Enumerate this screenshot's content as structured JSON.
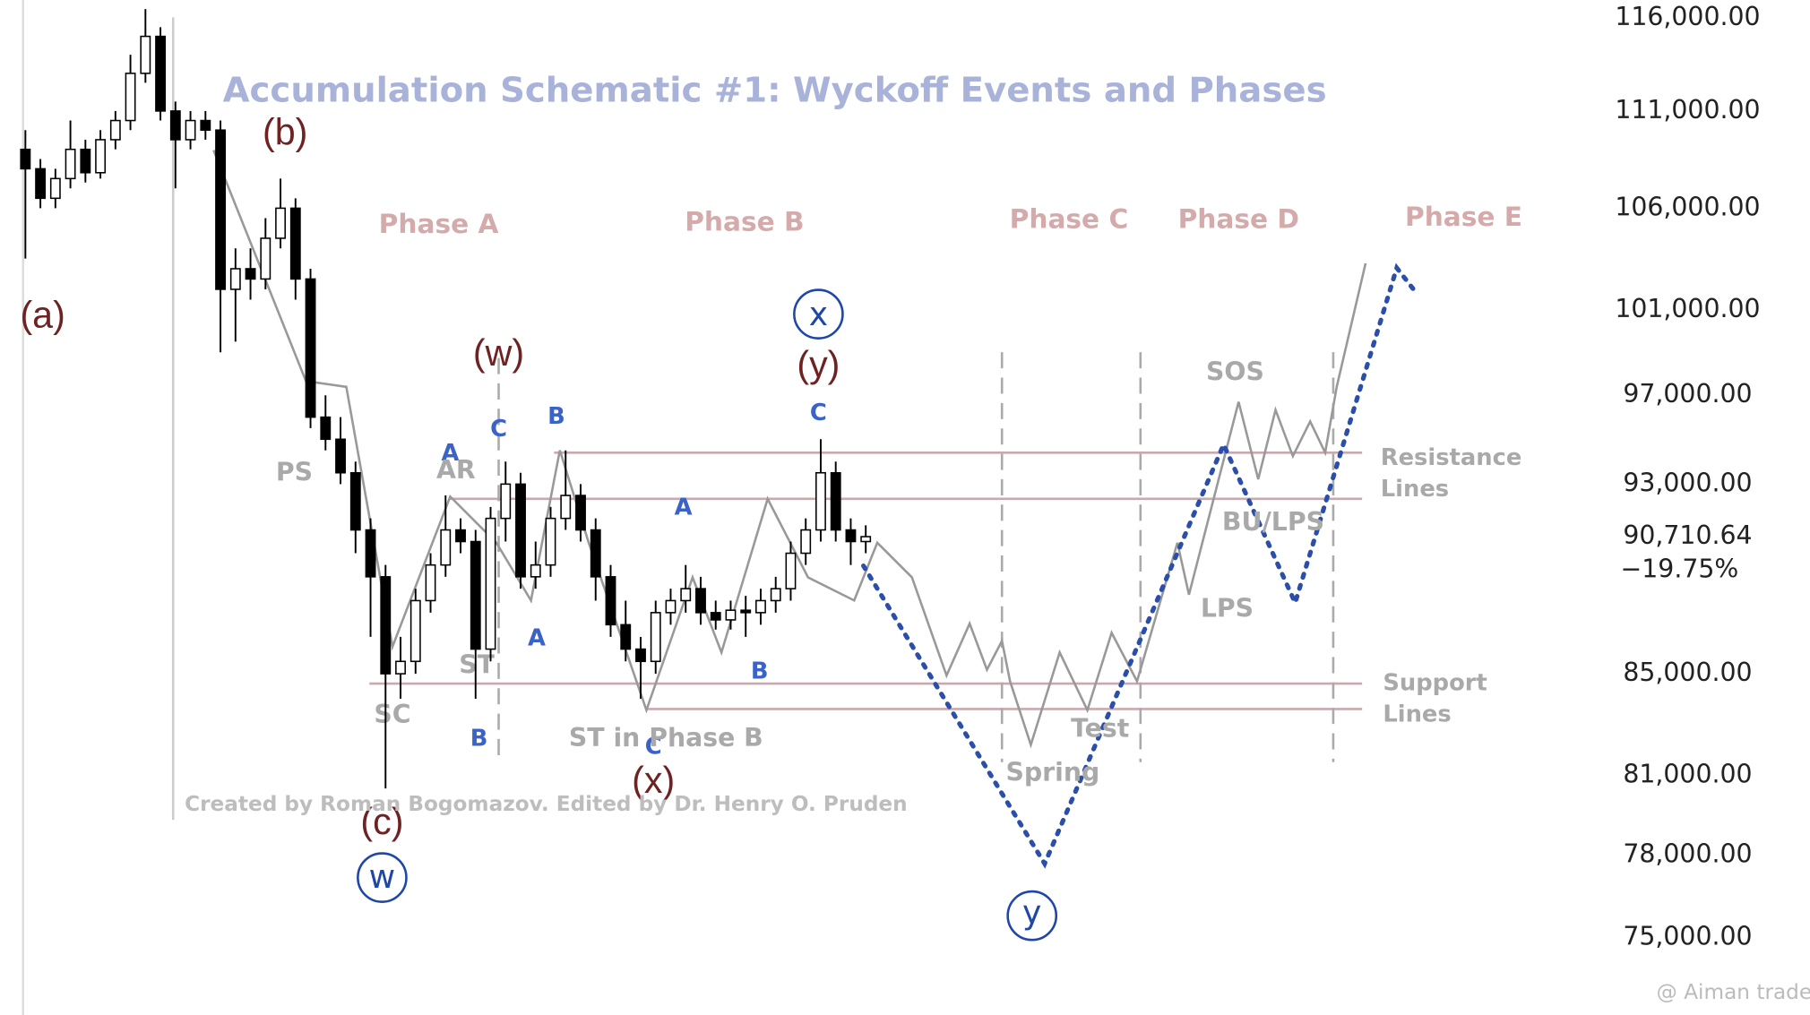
{
  "chart_data": {
    "type": "candlestick",
    "log_scale": true,
    "up_color": "#ffffff",
    "down_color": "#000000",
    "ylim": [
      72300,
      117000
    ],
    "yticks": [
      {
        "value": 116000,
        "label": "116,000.00"
      },
      {
        "value": 111000,
        "label": "111,000.00"
      },
      {
        "value": 106000,
        "label": "106,000.00"
      },
      {
        "value": 101000,
        "label": "101,000.00"
      },
      {
        "value": 97000,
        "label": "97,000.00"
      },
      {
        "value": 93000,
        "label": "93,000.00"
      },
      {
        "value": 85000,
        "label": "85,000.00"
      },
      {
        "value": 81000,
        "label": "81,000.00"
      },
      {
        "value": 78000,
        "label": "78,000.00"
      },
      {
        "value": 75000,
        "label": "75,000.00"
      }
    ],
    "last_price": {
      "value": 90710.64,
      "label": "90,710.64"
    },
    "change_label": "−19.75%",
    "open": [
      109000,
      108000,
      106500,
      107500,
      109000,
      107800,
      109500,
      110500,
      113000,
      115000,
      111000,
      109500,
      110500,
      110000,
      102000,
      103000,
      102500,
      104500,
      106000,
      102500,
      96000,
      95000,
      93500,
      91000,
      89000,
      85000,
      85500,
      88000,
      89500,
      91000,
      90500,
      86000,
      91500,
      93000,
      89000,
      89500,
      91500,
      92500,
      91000,
      89000,
      87000,
      86000,
      85500,
      87500,
      88000,
      88500,
      87500,
      87200,
      87600,
      87500,
      88000,
      88500,
      90000,
      91000,
      93500,
      91000,
      90500
    ],
    "high": [
      110000,
      108500,
      108000,
      110500,
      109500,
      110000,
      111000,
      114000,
      116500,
      115500,
      111500,
      111000,
      111000,
      110500,
      104000,
      104000,
      105500,
      107500,
      106500,
      103000,
      97000,
      96000,
      94000,
      91500,
      89500,
      86500,
      88500,
      90000,
      92500,
      91500,
      91000,
      92000,
      94000,
      93500,
      90500,
      92000,
      94500,
      93000,
      91500,
      89500,
      88000,
      86500,
      88000,
      88500,
      89500,
      89000,
      88000,
      88000,
      88200,
      88500,
      89000,
      90500,
      91500,
      95000,
      94000,
      91500,
      91200
    ],
    "low": [
      103500,
      106000,
      106000,
      107000,
      107300,
      107500,
      109000,
      110000,
      112500,
      110500,
      107000,
      109000,
      109500,
      99000,
      99500,
      101500,
      102000,
      104000,
      101500,
      95500,
      94500,
      93000,
      90000,
      86500,
      80500,
      84000,
      85000,
      87500,
      89000,
      90000,
      84000,
      85500,
      90500,
      88500,
      88500,
      89000,
      91000,
      90500,
      88000,
      86500,
      85500,
      84000,
      85000,
      87000,
      87500,
      87000,
      86800,
      86800,
      86500,
      87000,
      87500,
      88000,
      89500,
      90500,
      90500,
      89500,
      90000
    ],
    "close": [
      108000,
      106500,
      107500,
      109000,
      107800,
      109500,
      110500,
      113000,
      115000,
      111000,
      109500,
      110500,
      110000,
      102000,
      103000,
      102500,
      104500,
      106000,
      102500,
      96000,
      95000,
      93500,
      91000,
      89000,
      85000,
      85500,
      88000,
      89500,
      91000,
      90500,
      86000,
      91500,
      93000,
      89000,
      89500,
      91500,
      92500,
      91000,
      89000,
      87000,
      86000,
      85500,
      87500,
      88000,
      88500,
      87500,
      87200,
      87600,
      87500,
      88000,
      88500,
      90000,
      91000,
      93500,
      91000,
      90500,
      90710.64
    ],
    "annotations": {
      "title": "Accumulation Schematic #1: Wyckoff Events and Phases",
      "phases": [
        "Phase A",
        "Phase B",
        "Phase C",
        "Phase D",
        "Phase E"
      ],
      "waves": [
        "(a)",
        "(b)",
        "(w)",
        "(y)",
        "(c)",
        "(x)"
      ],
      "circled": [
        "x",
        "w",
        "y"
      ],
      "abc": [
        "A",
        "C",
        "B",
        "A",
        "A",
        "B",
        "C",
        "B",
        "C"
      ],
      "events": [
        "PS",
        "AR",
        "ST",
        "SC",
        "ST in Phase B",
        "Spring",
        "Test",
        "SOS",
        "BU/LPS",
        "LPS"
      ],
      "resistance": [
        "Resistance",
        "Lines"
      ],
      "support": [
        "Support",
        "Lines"
      ],
      "credit": "Created by Roman Bogomazov. Edited by Dr. Henry O. Pruden",
      "watermark": "@ Aiman trade"
    }
  }
}
